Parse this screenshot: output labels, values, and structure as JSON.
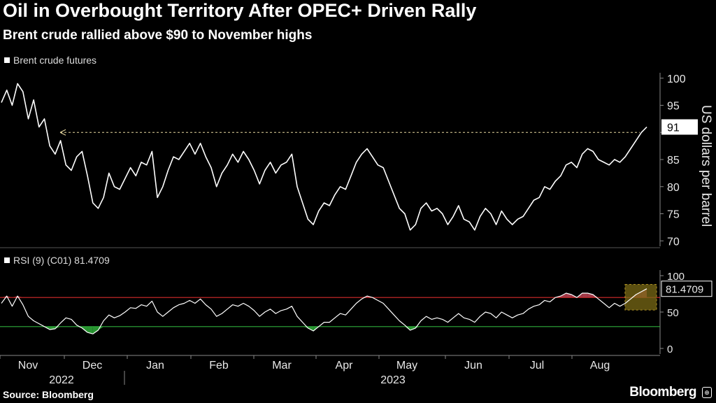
{
  "title": "Oil in Overbought Territory After OPEC+ Driven Rally",
  "subtitle": "Brent crude rallied above $90 to November highs",
  "source": "Source: Bloomberg",
  "brand": "Bloomberg",
  "colors": {
    "background": "#000000",
    "line": "#ffffff",
    "overbought_line": "#d62c2c",
    "oversold_line": "#2fae3a",
    "oversold_fill": "#2fae3a",
    "overbought_fill": "#c9485a",
    "highlight_box": "#7a6a16",
    "highlight_border": "#e8c232"
  },
  "chart_data": [
    {
      "type": "line",
      "legend": "Brent crude futures",
      "ylabel": "US dollars per barrel",
      "ylim": [
        69,
        101
      ],
      "yticks": [
        70,
        75,
        80,
        85,
        90,
        95,
        100
      ],
      "last_value_label": "91",
      "reference_line": {
        "value": 90,
        "style": "dashed"
      },
      "months": [
        "Nov",
        "Dec",
        "Jan",
        "Feb",
        "Mar",
        "Apr",
        "May",
        "Jun",
        "Jul",
        "Aug"
      ],
      "years": [
        "2022",
        "2023"
      ],
      "series": [
        {
          "values": [
            95.5,
            97.8,
            95.0,
            99.0,
            97.5,
            92.5,
            96.0,
            91.0,
            92.5,
            87.5,
            86.0,
            88.5,
            84.0,
            83.0,
            85.5,
            86.5,
            82.0,
            77.0,
            76.0,
            78.0,
            82.5,
            80.0,
            79.5,
            81.5,
            83.5,
            82.0,
            84.5,
            84.0,
            86.5,
            78.0,
            80.0,
            83.0,
            85.5,
            85.0,
            86.5,
            88.0,
            86.0,
            88.0,
            85.5,
            83.5,
            80.0,
            82.5,
            84.0,
            86.0,
            84.5,
            86.5,
            85.0,
            83.0,
            80.5,
            83.0,
            84.5,
            82.5,
            84.0,
            84.5,
            86.0,
            80.0,
            77.0,
            74.0,
            73.0,
            75.5,
            77.0,
            76.5,
            78.5,
            80.0,
            79.5,
            82.0,
            84.5,
            86.0,
            87.0,
            85.5,
            84.0,
            83.5,
            81.0,
            78.5,
            76.0,
            75.0,
            72.0,
            73.0,
            76.0,
            77.0,
            75.5,
            76.0,
            75.0,
            73.0,
            74.5,
            76.5,
            74.0,
            73.5,
            72.0,
            74.5,
            76.0,
            75.0,
            73.0,
            75.5,
            74.0,
            73.0,
            74.0,
            74.5,
            76.0,
            77.5,
            78.0,
            80.0,
            79.5,
            81.0,
            82.0,
            84.0,
            84.5,
            83.5,
            86.0,
            87.0,
            86.5,
            85.0,
            84.5,
            84.0,
            85.0,
            84.5,
            85.5,
            87.0,
            88.5,
            90.0,
            91.0
          ]
        }
      ]
    },
    {
      "type": "line",
      "legend": "RSI (9) (C01) 81.4709",
      "ylim": [
        0,
        100
      ],
      "yticks": [
        0,
        50,
        100
      ],
      "last_value_label": "81.4709",
      "overbought": 70,
      "oversold": 30,
      "series": [
        {
          "values": [
            62,
            72,
            58,
            72,
            60,
            44,
            38,
            34,
            30,
            26,
            27,
            35,
            42,
            40,
            32,
            28,
            22,
            20,
            25,
            38,
            46,
            42,
            45,
            50,
            56,
            55,
            60,
            58,
            65,
            50,
            44,
            50,
            56,
            60,
            62,
            66,
            62,
            68,
            60,
            54,
            44,
            48,
            54,
            60,
            58,
            62,
            58,
            52,
            44,
            50,
            54,
            48,
            52,
            54,
            58,
            44,
            36,
            28,
            24,
            30,
            36,
            36,
            42,
            48,
            46,
            54,
            62,
            68,
            72,
            70,
            66,
            62,
            54,
            46,
            38,
            32,
            25,
            28,
            38,
            44,
            40,
            42,
            40,
            36,
            42,
            48,
            42,
            40,
            36,
            44,
            50,
            48,
            42,
            50,
            46,
            42,
            46,
            48,
            54,
            58,
            60,
            66,
            64,
            70,
            72,
            76,
            74,
            70,
            76,
            76,
            74,
            68,
            62,
            56,
            62,
            58,
            62,
            68,
            74,
            78,
            82
          ]
        }
      ]
    }
  ]
}
